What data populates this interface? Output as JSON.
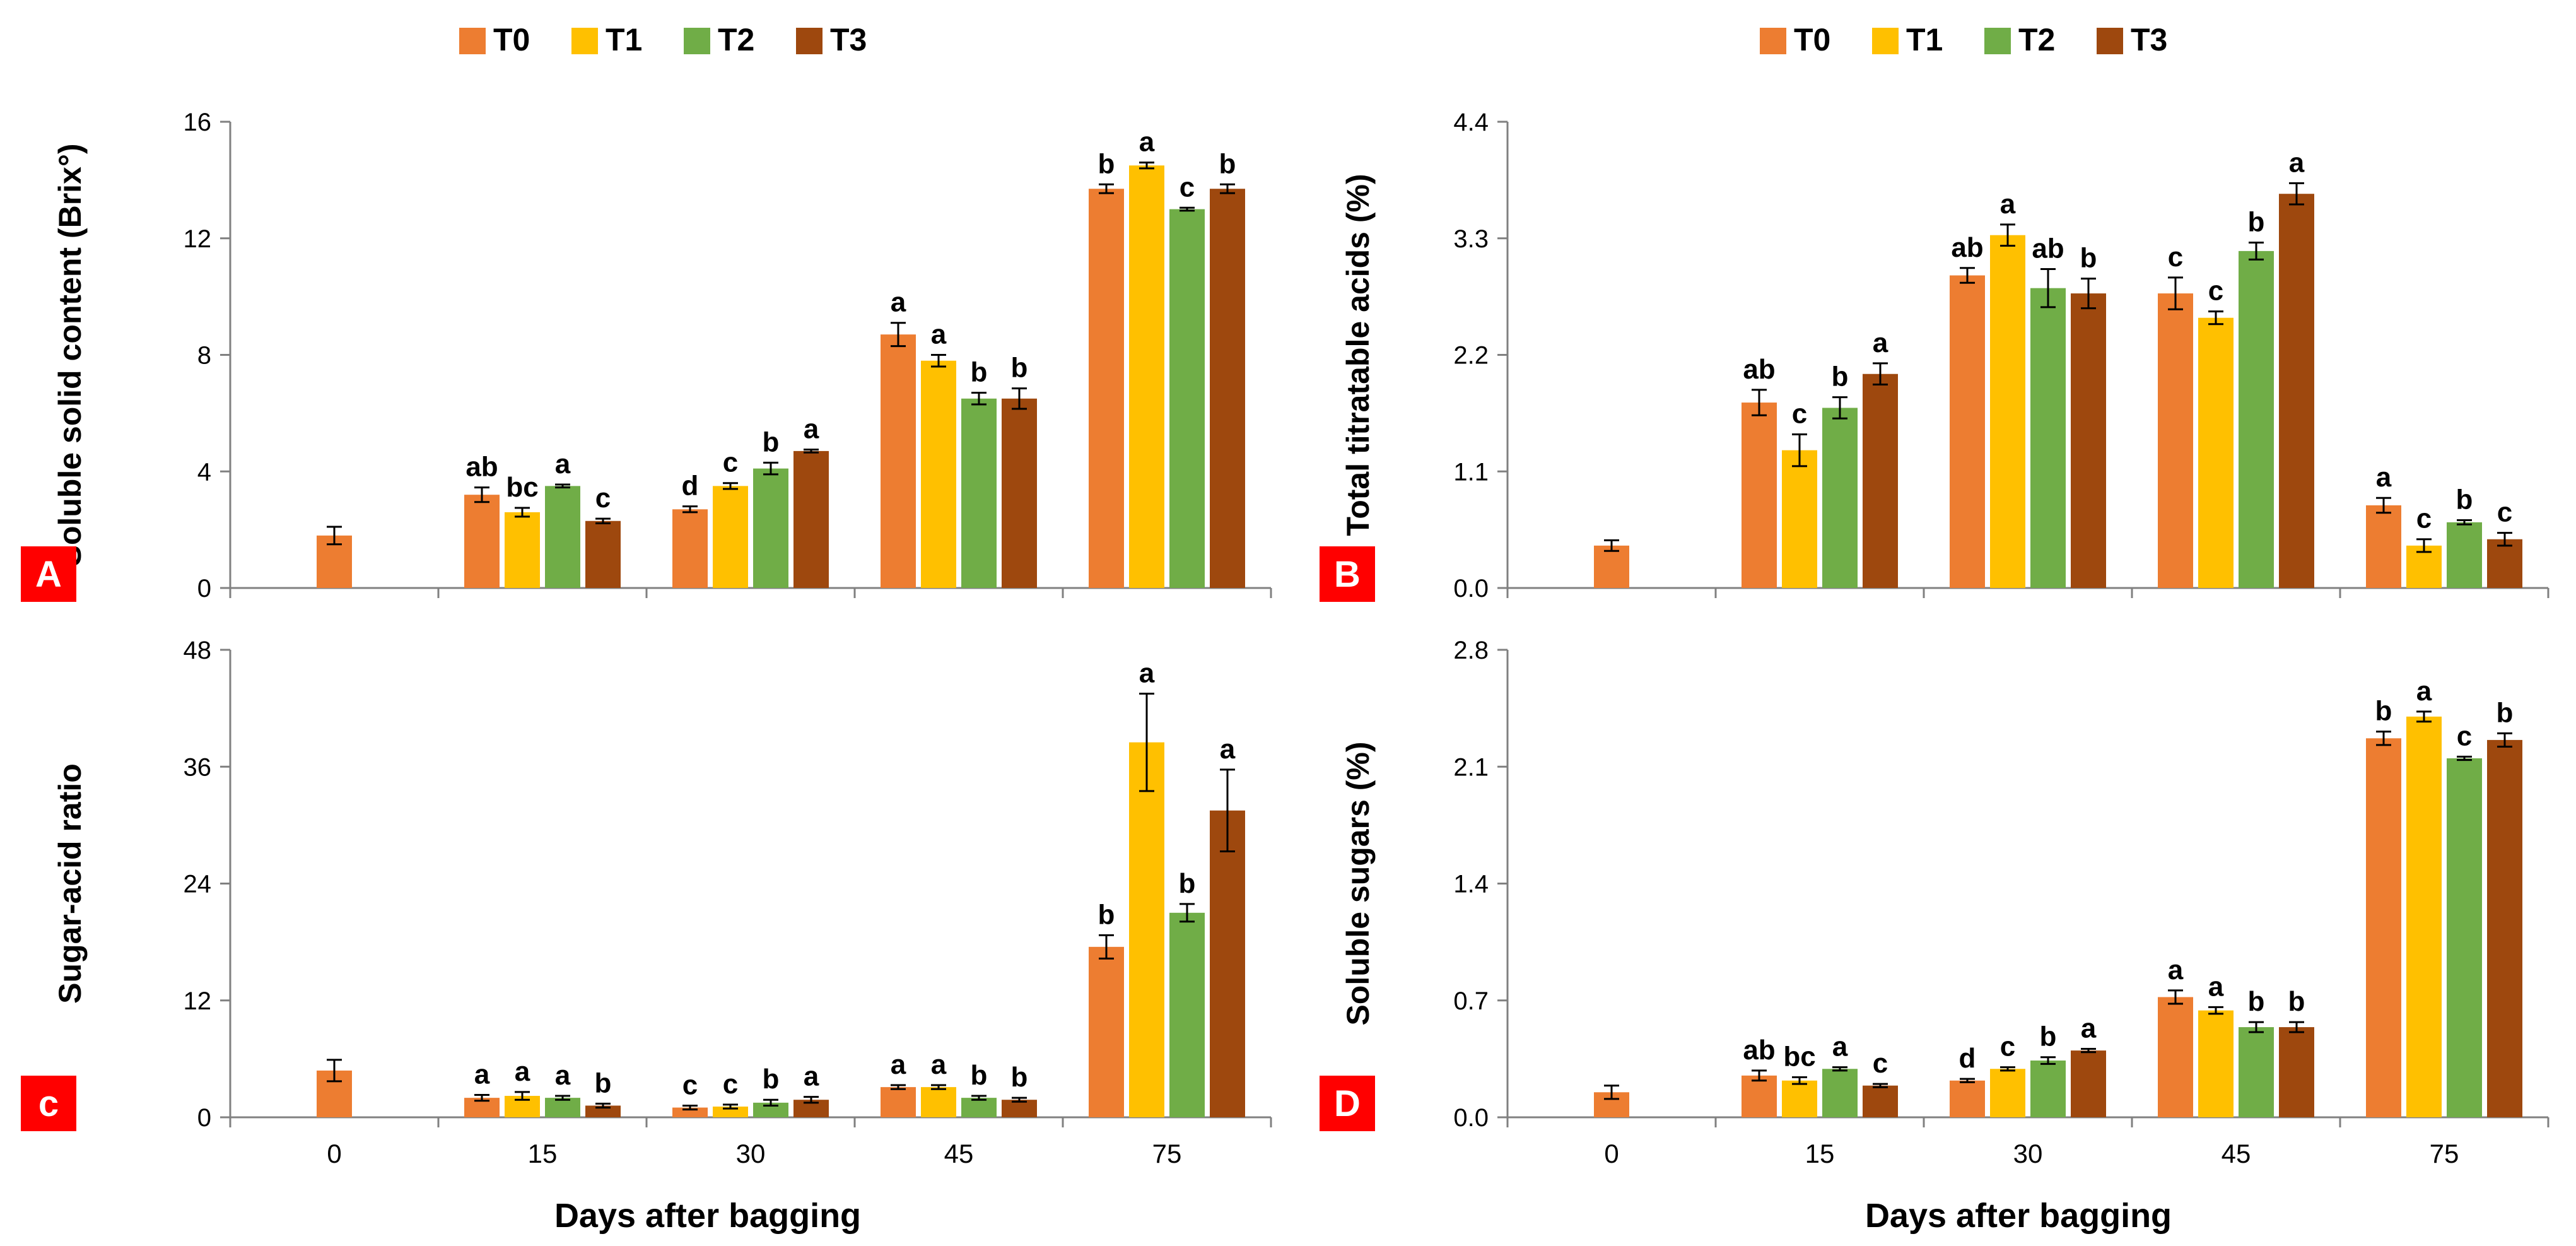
{
  "colors": {
    "T0": "#ED7D31",
    "T1": "#FFC000",
    "T2": "#70AD47",
    "T3": "#9E480E",
    "panel_label_bg": "#FF0000",
    "axis": "#808080"
  },
  "shared": {
    "x_axis_title": "Days after bagging",
    "categories": [
      "0",
      "15",
      "30",
      "45",
      "75"
    ],
    "legend": [
      "T0",
      "T1",
      "T2",
      "T3"
    ]
  },
  "chart_data": [
    {
      "panel": "A",
      "type": "bar",
      "ylabel": "Soluble solid content (Brix°)",
      "ylim": [
        0,
        16
      ],
      "yticks": [
        "0",
        "4",
        "8",
        "12",
        "16"
      ],
      "categories": [
        "0",
        "15",
        "30",
        "45",
        "75"
      ],
      "series": [
        {
          "name": "T0",
          "values": [
            1.8,
            3.2,
            2.7,
            8.7,
            13.7
          ],
          "errors": [
            0.3,
            0.25,
            0.1,
            0.4,
            0.15
          ],
          "letters": [
            "",
            "ab",
            "d",
            "a",
            "b"
          ]
        },
        {
          "name": "T1",
          "values": [
            null,
            2.6,
            3.5,
            7.8,
            14.5
          ],
          "errors": [
            null,
            0.15,
            0.1,
            0.2,
            0.1
          ],
          "letters": [
            "",
            "bc",
            "c",
            "a",
            "a"
          ]
        },
        {
          "name": "T2",
          "values": [
            null,
            3.5,
            4.1,
            6.5,
            13.0
          ],
          "errors": [
            null,
            0.05,
            0.2,
            0.2,
            0.05
          ],
          "letters": [
            "",
            "a",
            "b",
            "b",
            "c"
          ]
        },
        {
          "name": "T3",
          "values": [
            null,
            2.3,
            4.7,
            6.5,
            13.7
          ],
          "errors": [
            null,
            0.08,
            0.05,
            0.35,
            0.15
          ],
          "letters": [
            "",
            "c",
            "a",
            "b",
            "b"
          ]
        }
      ]
    },
    {
      "panel": "B",
      "type": "bar",
      "ylabel": "Total titratable acids (%)",
      "ylim": [
        0,
        4.4
      ],
      "yticks": [
        "0.0",
        "1.1",
        "2.2",
        "3.3",
        "4.4"
      ],
      "categories": [
        "0",
        "15",
        "30",
        "45",
        "75"
      ],
      "series": [
        {
          "name": "T0",
          "values": [
            0.4,
            1.75,
            2.95,
            2.78,
            0.78
          ],
          "errors": [
            0.05,
            0.12,
            0.07,
            0.15,
            0.07
          ],
          "letters": [
            "",
            "ab",
            "ab",
            "c",
            "a"
          ]
        },
        {
          "name": "T1",
          "values": [
            null,
            1.3,
            3.33,
            2.55,
            0.4
          ],
          "errors": [
            null,
            0.15,
            0.1,
            0.06,
            0.06
          ],
          "letters": [
            "",
            "c",
            "a",
            "c",
            "c"
          ]
        },
        {
          "name": "T2",
          "values": [
            null,
            1.7,
            2.83,
            3.18,
            0.62
          ],
          "errors": [
            null,
            0.1,
            0.18,
            0.08,
            0.02
          ],
          "letters": [
            "",
            "b",
            "ab",
            "b",
            "b"
          ]
        },
        {
          "name": "T3",
          "values": [
            null,
            2.02,
            2.78,
            3.72,
            0.46
          ],
          "errors": [
            null,
            0.1,
            0.14,
            0.1,
            0.06
          ],
          "letters": [
            "",
            "a",
            "b",
            "a",
            "c"
          ]
        }
      ]
    },
    {
      "panel": "c",
      "type": "bar",
      "ylabel": "Sugar-acid ratio",
      "ylim": [
        0,
        48
      ],
      "yticks": [
        "0",
        "12",
        "24",
        "36",
        "48"
      ],
      "categories": [
        "0",
        "15",
        "30",
        "45",
        "75"
      ],
      "series": [
        {
          "name": "T0",
          "values": [
            4.8,
            2.0,
            1.0,
            3.1,
            17.5
          ],
          "errors": [
            1.1,
            0.3,
            0.2,
            0.2,
            1.2
          ],
          "letters": [
            "",
            "a",
            "c",
            "a",
            "b"
          ]
        },
        {
          "name": "T1",
          "values": [
            null,
            2.2,
            1.1,
            3.1,
            38.5
          ],
          "errors": [
            null,
            0.4,
            0.2,
            0.2,
            5.0
          ],
          "letters": [
            "",
            "a",
            "c",
            "a",
            "a"
          ]
        },
        {
          "name": "T2",
          "values": [
            null,
            2.0,
            1.5,
            2.0,
            21.0
          ],
          "errors": [
            null,
            0.2,
            0.3,
            0.2,
            0.9
          ],
          "letters": [
            "",
            "a",
            "b",
            "b",
            "b"
          ]
        },
        {
          "name": "T3",
          "values": [
            null,
            1.2,
            1.8,
            1.8,
            31.5
          ],
          "errors": [
            null,
            0.2,
            0.3,
            0.2,
            4.2
          ],
          "letters": [
            "",
            "b",
            "a",
            "b",
            "a"
          ]
        }
      ]
    },
    {
      "panel": "D",
      "type": "bar",
      "ylabel": "Soluble sugars  (%)",
      "ylim": [
        0,
        2.8
      ],
      "yticks": [
        "0.0",
        "0.7",
        "1.4",
        "2.1",
        "2.8"
      ],
      "categories": [
        "0",
        "15",
        "30",
        "45",
        "75"
      ],
      "series": [
        {
          "name": "T0",
          "values": [
            0.15,
            0.25,
            0.22,
            0.72,
            2.27
          ],
          "errors": [
            0.04,
            0.03,
            0.01,
            0.04,
            0.04
          ],
          "letters": [
            "",
            "ab",
            "d",
            "a",
            "b"
          ]
        },
        {
          "name": "T1",
          "values": [
            null,
            0.22,
            0.29,
            0.64,
            2.4
          ],
          "errors": [
            null,
            0.02,
            0.01,
            0.02,
            0.03
          ],
          "letters": [
            "",
            "bc",
            "c",
            "a",
            "a"
          ]
        },
        {
          "name": "T2",
          "values": [
            null,
            0.29,
            0.34,
            0.54,
            2.15
          ],
          "errors": [
            null,
            0.01,
            0.02,
            0.03,
            0.01
          ],
          "letters": [
            "",
            "a",
            "b",
            "b",
            "c"
          ]
        },
        {
          "name": "T3",
          "values": [
            null,
            0.19,
            0.4,
            0.54,
            2.26
          ],
          "errors": [
            null,
            0.01,
            0.01,
            0.03,
            0.04
          ],
          "letters": [
            "",
            "c",
            "a",
            "b",
            "b"
          ]
        }
      ]
    }
  ]
}
